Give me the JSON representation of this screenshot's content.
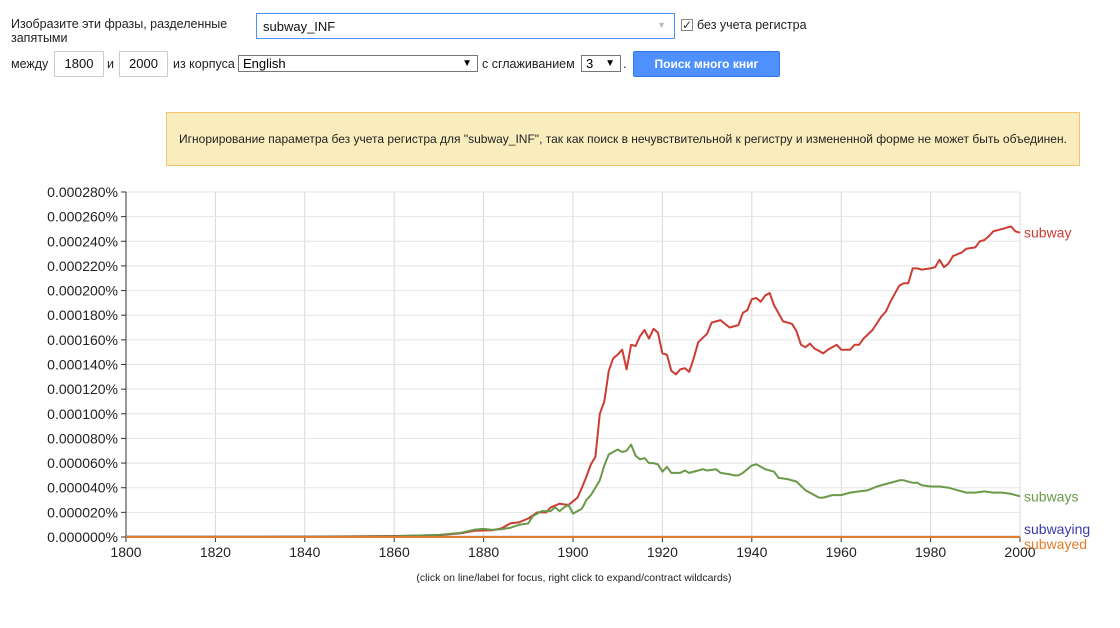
{
  "form": {
    "phrase_label": "Изобразите эти фразы, разделенные запятыми",
    "query_value": "subway_INF",
    "case_insensitive_checked": true,
    "case_insensitive_label": "без учета регистра",
    "between_label": "между",
    "year_start": "1800",
    "and_label": "и",
    "year_end": "2000",
    "corpus_label": "из корпуса",
    "corpus_value": "English",
    "smoothing_label": "с сглаживанием",
    "smoothing_value": "3",
    "smoothing_suffix": ".",
    "search_button": "Поиск много книг"
  },
  "warning": {
    "text": "Игнорирование параметра без учета регистра для \"subway_INF\", так как поиск в нечувствительной к регистру и измененной форме не может быть объединен."
  },
  "footnote": "(click on line/label for focus, right click to expand/contract wildcards)",
  "chart_data": {
    "type": "line",
    "title": "",
    "xlabel": "",
    "ylabel": "",
    "xlim": [
      1800,
      2000
    ],
    "ylim": [
      0,
      0.00028
    ],
    "x_ticks": [
      1800,
      1820,
      1840,
      1860,
      1880,
      1900,
      1920,
      1940,
      1960,
      1980,
      2000
    ],
    "y_ticks": [
      0.0,
      2e-05,
      4e-05,
      6e-05,
      8e-05,
      0.0001,
      0.00012,
      0.00014,
      0.00016,
      0.00018,
      0.0002,
      0.00022,
      0.00024,
      0.00026,
      0.00028
    ],
    "y_tick_labels": [
      "0.000000%",
      "0.000020%",
      "0.000040%",
      "0.000060%",
      "0.000080%",
      "0.000100%",
      "0.000120%",
      "0.000140%",
      "0.000160%",
      "0.000180%",
      "0.000200%",
      "0.000220%",
      "0.000240%",
      "0.000260%",
      "0.000280%"
    ],
    "grid": true,
    "legend": "right (labels at line ends)",
    "series": [
      {
        "name": "subway",
        "color": "#cc3d33",
        "points": [
          [
            1800,
            2e-07
          ],
          [
            1820,
            2e-07
          ],
          [
            1840,
            3e-07
          ],
          [
            1860,
            8e-07
          ],
          [
            1870,
            1.5e-06
          ],
          [
            1875,
            3e-06
          ],
          [
            1878,
            5e-06
          ],
          [
            1882,
            5.5e-06
          ],
          [
            1884,
            7e-06
          ],
          [
            1886,
            1.1e-05
          ],
          [
            1888,
            1.2e-05
          ],
          [
            1890,
            1.5e-05
          ],
          [
            1892,
            2e-05
          ],
          [
            1894,
            2e-05
          ],
          [
            1895,
            2.4e-05
          ],
          [
            1897,
            2.7e-05
          ],
          [
            1899,
            2.6e-05
          ],
          [
            1900,
            2.9e-05
          ],
          [
            1901,
            3.2e-05
          ],
          [
            1902,
            4e-05
          ],
          [
            1903,
            4.9e-05
          ],
          [
            1904,
            5.9e-05
          ],
          [
            1905,
            6.5e-05
          ],
          [
            1906,
            0.0001
          ],
          [
            1907,
            0.00011
          ],
          [
            1908,
            0.000135
          ],
          [
            1909,
            0.000145
          ],
          [
            1910,
            0.000148
          ],
          [
            1911,
            0.000152
          ],
          [
            1912,
            0.000136
          ],
          [
            1913,
            0.000156
          ],
          [
            1914,
            0.000155
          ],
          [
            1915,
            0.000163
          ],
          [
            1916,
            0.000168
          ],
          [
            1917,
            0.000161
          ],
          [
            1918,
            0.000169
          ],
          [
            1919,
            0.000166
          ],
          [
            1920,
            0.000149
          ],
          [
            1921,
            0.000148
          ],
          [
            1922,
            0.000135
          ],
          [
            1923,
            0.000132
          ],
          [
            1924,
            0.000136
          ],
          [
            1925,
            0.000137
          ],
          [
            1926,
            0.000134
          ],
          [
            1927,
            0.000145
          ],
          [
            1928,
            0.000158
          ],
          [
            1930,
            0.000165
          ],
          [
            1931,
            0.000174
          ],
          [
            1933,
            0.000176
          ],
          [
            1935,
            0.00017
          ],
          [
            1937,
            0.000172
          ],
          [
            1938,
            0.000182
          ],
          [
            1939,
            0.000184
          ],
          [
            1940,
            0.000193
          ],
          [
            1941,
            0.000194
          ],
          [
            1942,
            0.000191
          ],
          [
            1943,
            0.000196
          ],
          [
            1944,
            0.000198
          ],
          [
            1945,
            0.000188
          ],
          [
            1947,
            0.000175
          ],
          [
            1949,
            0.000173
          ],
          [
            1950,
            0.000167
          ],
          [
            1951,
            0.000156
          ],
          [
            1952,
            0.000154
          ],
          [
            1953,
            0.000157
          ],
          [
            1954,
            0.000153
          ],
          [
            1955,
            0.000151
          ],
          [
            1956,
            0.000149
          ],
          [
            1957,
            0.000152
          ],
          [
            1958,
            0.000154
          ],
          [
            1959,
            0.000156
          ],
          [
            1960,
            0.000152
          ],
          [
            1962,
            0.000152
          ],
          [
            1963,
            0.000156
          ],
          [
            1964,
            0.000156
          ],
          [
            1965,
            0.000161
          ],
          [
            1967,
            0.000168
          ],
          [
            1969,
            0.000179
          ],
          [
            1970,
            0.000183
          ],
          [
            1971,
            0.000191
          ],
          [
            1973,
            0.000204
          ],
          [
            1974,
            0.000206
          ],
          [
            1975,
            0.000206
          ],
          [
            1976,
            0.000218
          ],
          [
            1977,
            0.000218
          ],
          [
            1978,
            0.000217
          ],
          [
            1980,
            0.000218
          ],
          [
            1981,
            0.000219
          ],
          [
            1982,
            0.000225
          ],
          [
            1983,
            0.000219
          ],
          [
            1984,
            0.000222
          ],
          [
            1985,
            0.000228
          ],
          [
            1987,
            0.000231
          ],
          [
            1988,
            0.000234
          ],
          [
            1990,
            0.000235
          ],
          [
            1991,
            0.00024
          ],
          [
            1992,
            0.000241
          ],
          [
            1993,
            0.000244
          ],
          [
            1994,
            0.000248
          ],
          [
            1995,
            0.000249
          ],
          [
            1996,
            0.00025
          ],
          [
            1997,
            0.000251
          ],
          [
            1998,
            0.000252
          ],
          [
            1999,
            0.000248
          ],
          [
            2000,
            0.000247
          ]
        ]
      },
      {
        "name": "subways",
        "color": "#6a9a49",
        "points": [
          [
            1800,
            1e-07
          ],
          [
            1840,
            2e-07
          ],
          [
            1860,
            6e-07
          ],
          [
            1870,
            1.7e-06
          ],
          [
            1875,
            3.5e-06
          ],
          [
            1878,
            6e-06
          ],
          [
            1880,
            6.6e-06
          ],
          [
            1882,
            5.8e-06
          ],
          [
            1884,
            6.3e-06
          ],
          [
            1886,
            7.5e-06
          ],
          [
            1888,
            1e-05
          ],
          [
            1890,
            1.1e-05
          ],
          [
            1891,
            1.7e-05
          ],
          [
            1893,
            2.1e-05
          ],
          [
            1895,
            2.1e-05
          ],
          [
            1896,
            2.4e-05
          ],
          [
            1897,
            2.1e-05
          ],
          [
            1898,
            2.4e-05
          ],
          [
            1899,
            2.6e-05
          ],
          [
            1900,
            1.9e-05
          ],
          [
            1902,
            2.3e-05
          ],
          [
            1903,
            3e-05
          ],
          [
            1904,
            3.4e-05
          ],
          [
            1905,
            4e-05
          ],
          [
            1906,
            4.6e-05
          ],
          [
            1907,
            5.8e-05
          ],
          [
            1908,
            6.7e-05
          ],
          [
            1909,
            6.9e-05
          ],
          [
            1910,
            7.1e-05
          ],
          [
            1911,
            6.9e-05
          ],
          [
            1912,
            7e-05
          ],
          [
            1913,
            7.5e-05
          ],
          [
            1914,
            6.6e-05
          ],
          [
            1915,
            6.3e-05
          ],
          [
            1916,
            6.4e-05
          ],
          [
            1917,
            6e-05
          ],
          [
            1918,
            6e-05
          ],
          [
            1919,
            5.9e-05
          ],
          [
            1920,
            5.3e-05
          ],
          [
            1921,
            5.7e-05
          ],
          [
            1922,
            5.2e-05
          ],
          [
            1924,
            5.2e-05
          ],
          [
            1925,
            5.4e-05
          ],
          [
            1926,
            5.2e-05
          ],
          [
            1928,
            5.4e-05
          ],
          [
            1929,
            5.5e-05
          ],
          [
            1930,
            5.4e-05
          ],
          [
            1932,
            5.5e-05
          ],
          [
            1933,
            5.2e-05
          ],
          [
            1935,
            5.1e-05
          ],
          [
            1936,
            5e-05
          ],
          [
            1937,
            5e-05
          ],
          [
            1938,
            5.2e-05
          ],
          [
            1939,
            5.5e-05
          ],
          [
            1940,
            5.8e-05
          ],
          [
            1941,
            5.9e-05
          ],
          [
            1943,
            5.5e-05
          ],
          [
            1945,
            5.3e-05
          ],
          [
            1946,
            4.8e-05
          ],
          [
            1948,
            4.7e-05
          ],
          [
            1950,
            4.5e-05
          ],
          [
            1952,
            3.8e-05
          ],
          [
            1954,
            3.4e-05
          ],
          [
            1955,
            3.2e-05
          ],
          [
            1956,
            3.2e-05
          ],
          [
            1958,
            3.4e-05
          ],
          [
            1960,
            3.4e-05
          ],
          [
            1962,
            3.6e-05
          ],
          [
            1964,
            3.7e-05
          ],
          [
            1966,
            3.8e-05
          ],
          [
            1968,
            4.1e-05
          ],
          [
            1970,
            4.3e-05
          ],
          [
            1972,
            4.5e-05
          ],
          [
            1973,
            4.6e-05
          ],
          [
            1974,
            4.6e-05
          ],
          [
            1975,
            4.5e-05
          ],
          [
            1976,
            4.4e-05
          ],
          [
            1977,
            4.4e-05
          ],
          [
            1978,
            4.2e-05
          ],
          [
            1980,
            4.1e-05
          ],
          [
            1982,
            4.1e-05
          ],
          [
            1984,
            4e-05
          ],
          [
            1986,
            3.8e-05
          ],
          [
            1988,
            3.6e-05
          ],
          [
            1990,
            3.6e-05
          ],
          [
            1992,
            3.7e-05
          ],
          [
            1994,
            3.6e-05
          ],
          [
            1996,
            3.6e-05
          ],
          [
            1998,
            3.5e-05
          ],
          [
            2000,
            3.3e-05
          ]
        ]
      },
      {
        "name": "subwaying",
        "color": "#3a3aa8",
        "points": [
          [
            1800,
            1e-07
          ],
          [
            2000,
            1e-07
          ]
        ]
      },
      {
        "name": "subwayed",
        "color": "#e07d2c",
        "points": [
          [
            1800,
            0.0
          ],
          [
            2000,
            0.0
          ]
        ]
      }
    ]
  }
}
